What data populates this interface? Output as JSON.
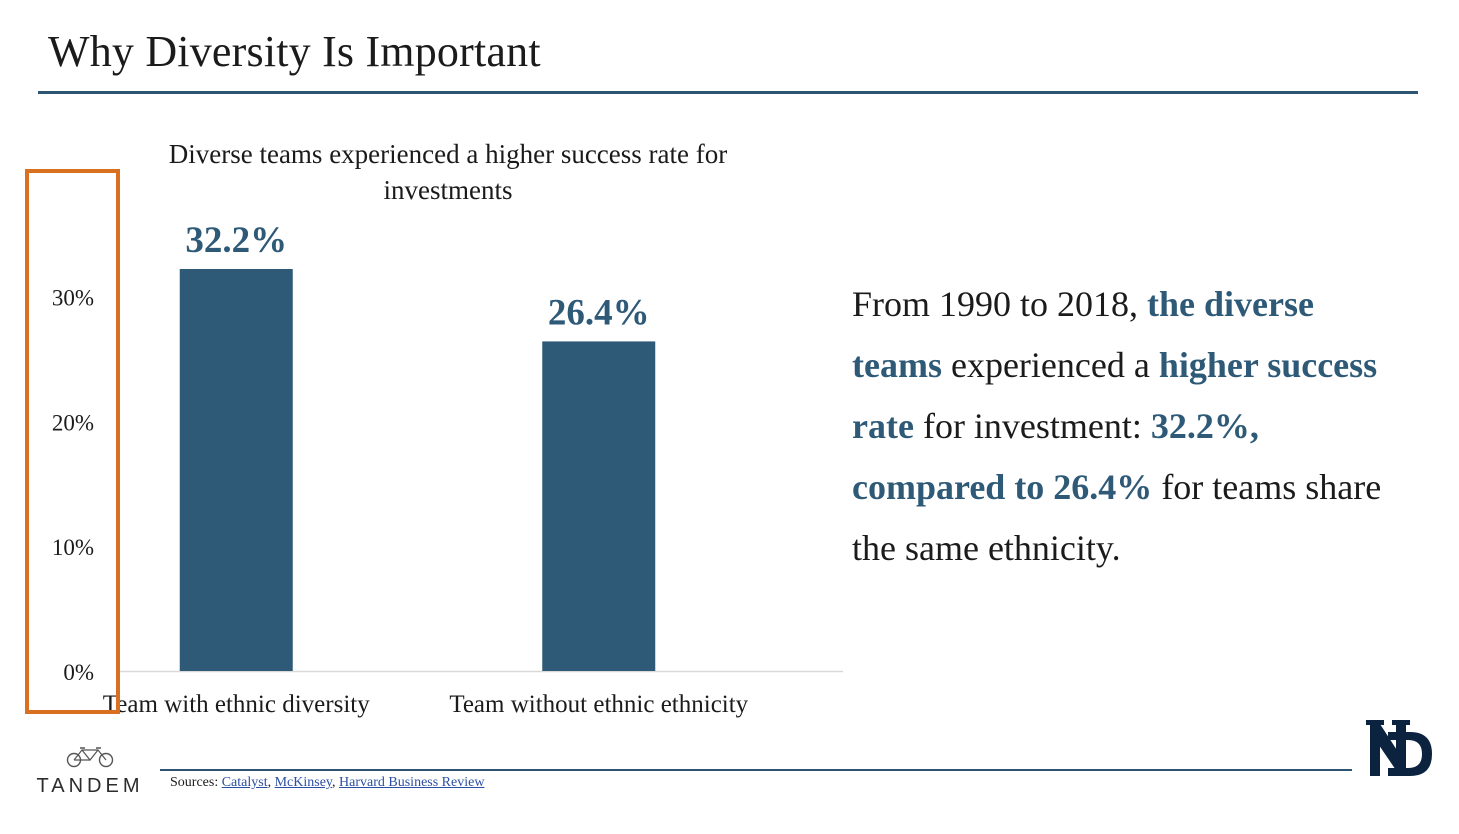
{
  "slide": {
    "title": "Why Diversity Is Important"
  },
  "chart_data": {
    "type": "bar",
    "title": "Diverse teams experienced a higher success rate for investments",
    "categories": [
      "Team with ethnic diversity",
      "Team without ethnic ethnicity"
    ],
    "values": [
      32.2,
      26.4
    ],
    "value_labels": [
      "32.2%",
      "26.4%"
    ],
    "y_ticks": [
      0,
      10,
      20,
      30
    ],
    "y_tick_labels": [
      "0%",
      "10%",
      "20%",
      "30%"
    ],
    "ylim": [
      0,
      32.2
    ],
    "grid": false,
    "legend": "none",
    "bar_color": "#2e5a78",
    "label_color": "#2e5a78"
  },
  "description": {
    "p1": "From 1990 to 2018, ",
    "h1": "the diverse teams",
    "p2": " experienced a ",
    "h2": "higher success rate",
    "p3": " for investment: ",
    "h3": "32.2%, compared to 26.4%",
    "p4": " for teams share the same ethnicity."
  },
  "footer": {
    "brand": "TANDEM",
    "brand_icon": "tandem-bicycle-icon",
    "sources_label": "Sources:",
    "source_links": [
      "Catalyst",
      "McKinsey",
      "Harvard Business Review"
    ],
    "sep1": ", ",
    "sep2": ", ",
    "nd_logo_icon": "notre-dame-monogram-icon"
  },
  "colors": {
    "accent": "#2e5a78",
    "highlight_box": "#d8701f",
    "rule": "#2d5471"
  }
}
